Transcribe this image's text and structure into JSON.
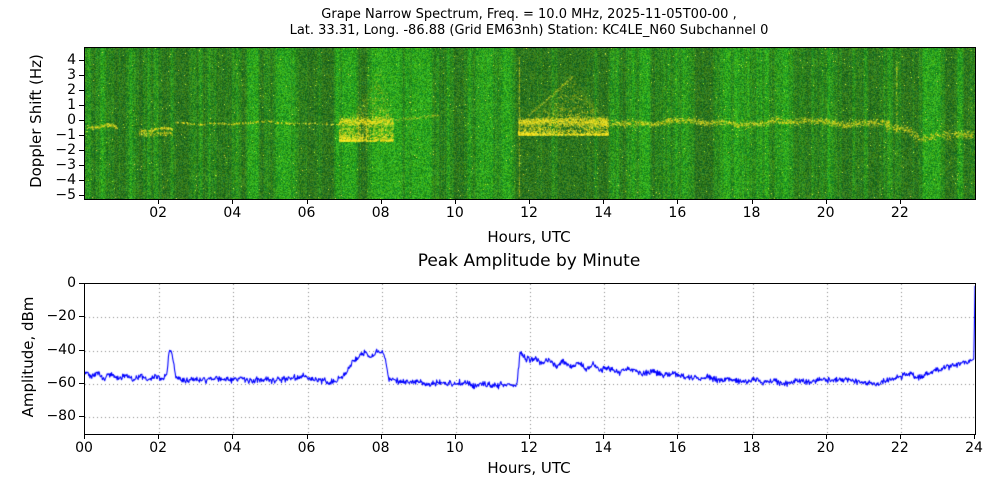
{
  "chart_data": [
    {
      "type": "heatmap",
      "title": "Grape Narrow Spectrum, Freq. = 10.0 MHz, 2025-11-05T00-00 ,",
      "subtitle": "Lat.  33.31, Long. -86.88 (Grid EM63nh) Station: KC4LE_N60 Subchannel 0",
      "xlabel": "Hours, UTC",
      "ylabel": "Doppler Shift (Hz)",
      "xlim": [
        0,
        24
      ],
      "ylim": [
        -5.2,
        4.9
      ],
      "xticks": [
        "02",
        "04",
        "06",
        "08",
        "10",
        "12",
        "14",
        "16",
        "18",
        "20",
        "22"
      ],
      "xtick_values": [
        2,
        4,
        6,
        8,
        10,
        12,
        14,
        16,
        18,
        20,
        22
      ],
      "ytick_labels": [
        "4",
        "3",
        "2",
        "1",
        "0",
        "−1",
        "−2",
        "−3",
        "−4",
        "−5"
      ],
      "ytick_values": [
        4,
        3,
        2,
        1,
        0,
        -1,
        -2,
        -3,
        -4,
        -5
      ],
      "colors": {
        "background_green": "#2d8a2d",
        "signal_yellow": "#ffee00"
      },
      "events": [
        {
          "kind": "cloud",
          "t0": 0,
          "t1": 24,
          "ymin": 4.45,
          "ymax": 4.75,
          "density": 0.25
        },
        {
          "kind": "cloud",
          "t0": 13.7,
          "t1": 21.6,
          "ymin": -0.9,
          "ymax": 0.9,
          "density": 0.18
        },
        {
          "kind": "cloud",
          "t0": 21.9,
          "t1": 23.95,
          "ymin": -3.0,
          "ymax": 0.4,
          "density": 0.5
        },
        {
          "kind": "burst",
          "t0": 6.85,
          "t1": 8.3,
          "peak": 7.95,
          "ymin": -1.3,
          "ymax": 3.8,
          "density": 0.9
        },
        {
          "kind": "burst",
          "t0": 11.68,
          "t1": 14.1,
          "peak": 13.0,
          "ymin": -0.9,
          "ymax": 3.3,
          "density": 0.75
        },
        {
          "kind": "vline",
          "t": 11.7,
          "y0": -5.0,
          "y1": 4.3,
          "density": 0.5
        },
        {
          "kind": "vline",
          "t": 21.88,
          "y0": -0.6,
          "y1": 4.2,
          "density": 0.45
        },
        {
          "kind": "streak",
          "t0": 11.95,
          "t1": 13.15,
          "ya": 0.4,
          "yb": 3.0,
          "density": 0.5
        },
        {
          "kind": "streak",
          "t0": 8.35,
          "t1": 9.55,
          "ya": 0.1,
          "yb": 0.45,
          "density": 0.35
        },
        {
          "kind": "wavy",
          "t0": 0.05,
          "t1": 2.35,
          "y": -0.45,
          "amp": 0.3,
          "spread": 0.15,
          "density": 0.8,
          "gaps": true
        },
        {
          "kind": "wavy",
          "t0": 1.45,
          "t1": 2.35,
          "y": -0.85,
          "amp": 0.25,
          "spread": 0.15,
          "density": 0.6,
          "gaps": true
        },
        {
          "kind": "wavy",
          "t0": 2.4,
          "t1": 6.9,
          "y": -0.1,
          "amp": 0.12,
          "spread": 0.1,
          "density": 0.35,
          "gaps": false
        },
        {
          "kind": "wavy",
          "t0": 13.9,
          "t1": 21.7,
          "y": -0.05,
          "amp": 0.2,
          "spread": 0.28,
          "density": 0.95,
          "gaps": false
        },
        {
          "kind": "wavy",
          "t0": 21.6,
          "t1": 23.95,
          "y": -0.75,
          "amp": 0.55,
          "spread": 0.35,
          "density": 0.9,
          "gaps": false
        }
      ]
    },
    {
      "type": "line",
      "title": "Peak Amplitude by Minute",
      "xlabel": "Hours, UTC",
      "ylabel": "Amplitude, dBm",
      "xlim": [
        0,
        24
      ],
      "ylim": [
        -90,
        0
      ],
      "xticks": [
        "00",
        "02",
        "04",
        "06",
        "08",
        "10",
        "12",
        "14",
        "16",
        "18",
        "20",
        "22",
        "24"
      ],
      "xtick_values": [
        0,
        2,
        4,
        6,
        8,
        10,
        12,
        14,
        16,
        18,
        20,
        22,
        24
      ],
      "ytick_labels": [
        "0",
        "−20",
        "−40",
        "−60",
        "−80"
      ],
      "ytick_values": [
        0,
        -20,
        -40,
        -60,
        -80
      ],
      "grid": true,
      "grid_style": "dotted",
      "line_color": "#0000ff",
      "points": [
        [
          0.0,
          -52
        ],
        [
          0.15,
          -56
        ],
        [
          0.3,
          -53
        ],
        [
          0.5,
          -57
        ],
        [
          0.7,
          -54
        ],
        [
          0.9,
          -57
        ],
        [
          1.1,
          -54
        ],
        [
          1.3,
          -57
        ],
        [
          1.5,
          -55
        ],
        [
          1.7,
          -58
        ],
        [
          1.9,
          -55
        ],
        [
          2.1,
          -57
        ],
        [
          2.2,
          -55
        ],
        [
          2.28,
          -39
        ],
        [
          2.36,
          -42
        ],
        [
          2.45,
          -56
        ],
        [
          2.7,
          -58
        ],
        [
          3.0,
          -57
        ],
        [
          3.3,
          -58
        ],
        [
          3.6,
          -57
        ],
        [
          3.9,
          -58
        ],
        [
          4.2,
          -57
        ],
        [
          4.5,
          -58
        ],
        [
          4.8,
          -57
        ],
        [
          5.1,
          -58
        ],
        [
          5.4,
          -57
        ],
        [
          5.7,
          -56
        ],
        [
          5.9,
          -55
        ],
        [
          6.1,
          -57
        ],
        [
          6.4,
          -58
        ],
        [
          6.6,
          -59
        ],
        [
          6.8,
          -58
        ],
        [
          7.0,
          -54
        ],
        [
          7.2,
          -47
        ],
        [
          7.4,
          -43
        ],
        [
          7.55,
          -41
        ],
        [
          7.7,
          -44
        ],
        [
          7.85,
          -41
        ],
        [
          8.0,
          -40
        ],
        [
          8.1,
          -45
        ],
        [
          8.18,
          -57
        ],
        [
          8.4,
          -58
        ],
        [
          8.7,
          -59
        ],
        [
          9.0,
          -58
        ],
        [
          9.3,
          -60
        ],
        [
          9.6,
          -59
        ],
        [
          9.9,
          -60
        ],
        [
          10.2,
          -59
        ],
        [
          10.5,
          -61
        ],
        [
          10.8,
          -60
        ],
        [
          11.1,
          -61
        ],
        [
          11.4,
          -60
        ],
        [
          11.65,
          -61
        ],
        [
          11.73,
          -41
        ],
        [
          11.85,
          -44
        ],
        [
          12.0,
          -46
        ],
        [
          12.15,
          -44
        ],
        [
          12.3,
          -48
        ],
        [
          12.5,
          -45
        ],
        [
          12.7,
          -49
        ],
        [
          12.9,
          -46
        ],
        [
          13.1,
          -50
        ],
        [
          13.3,
          -47
        ],
        [
          13.5,
          -51
        ],
        [
          13.7,
          -48
        ],
        [
          13.9,
          -52
        ],
        [
          14.1,
          -50
        ],
        [
          14.4,
          -53
        ],
        [
          14.7,
          -51
        ],
        [
          15.0,
          -54
        ],
        [
          15.3,
          -52
        ],
        [
          15.6,
          -55
        ],
        [
          15.9,
          -54
        ],
        [
          16.2,
          -56
        ],
        [
          16.5,
          -57
        ],
        [
          16.8,
          -56
        ],
        [
          17.1,
          -58
        ],
        [
          17.4,
          -57
        ],
        [
          17.7,
          -59
        ],
        [
          18.0,
          -57
        ],
        [
          18.3,
          -59
        ],
        [
          18.6,
          -58
        ],
        [
          18.9,
          -60
        ],
        [
          19.2,
          -58
        ],
        [
          19.5,
          -59
        ],
        [
          19.8,
          -57
        ],
        [
          20.1,
          -58
        ],
        [
          20.4,
          -57
        ],
        [
          20.7,
          -58
        ],
        [
          21.0,
          -59
        ],
        [
          21.3,
          -60
        ],
        [
          21.6,
          -58
        ],
        [
          21.9,
          -56
        ],
        [
          22.2,
          -54
        ],
        [
          22.5,
          -56
        ],
        [
          22.8,
          -53
        ],
        [
          23.1,
          -51
        ],
        [
          23.4,
          -49
        ],
        [
          23.7,
          -47
        ],
        [
          23.9,
          -46
        ],
        [
          23.97,
          -45
        ],
        [
          24.0,
          -1
        ]
      ]
    }
  ]
}
